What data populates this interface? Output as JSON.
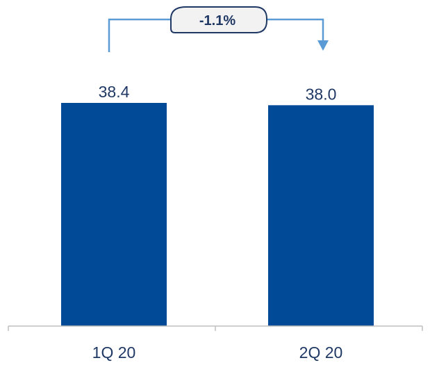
{
  "chart_data": {
    "type": "bar",
    "categories": [
      "1Q 20",
      "2Q 20"
    ],
    "values": [
      38.4,
      38.0
    ],
    "value_labels": [
      "38.4",
      "38.0"
    ],
    "change_label": "-1.1%",
    "title": "",
    "xlabel": "",
    "ylabel": "",
    "ylim": [
      0,
      38.4
    ],
    "grid": false,
    "legend": "none",
    "colors": {
      "bar": "#004a97",
      "connector": "#5b9bd5",
      "text": "#1f3864",
      "axis": "#bfbfbf"
    }
  }
}
